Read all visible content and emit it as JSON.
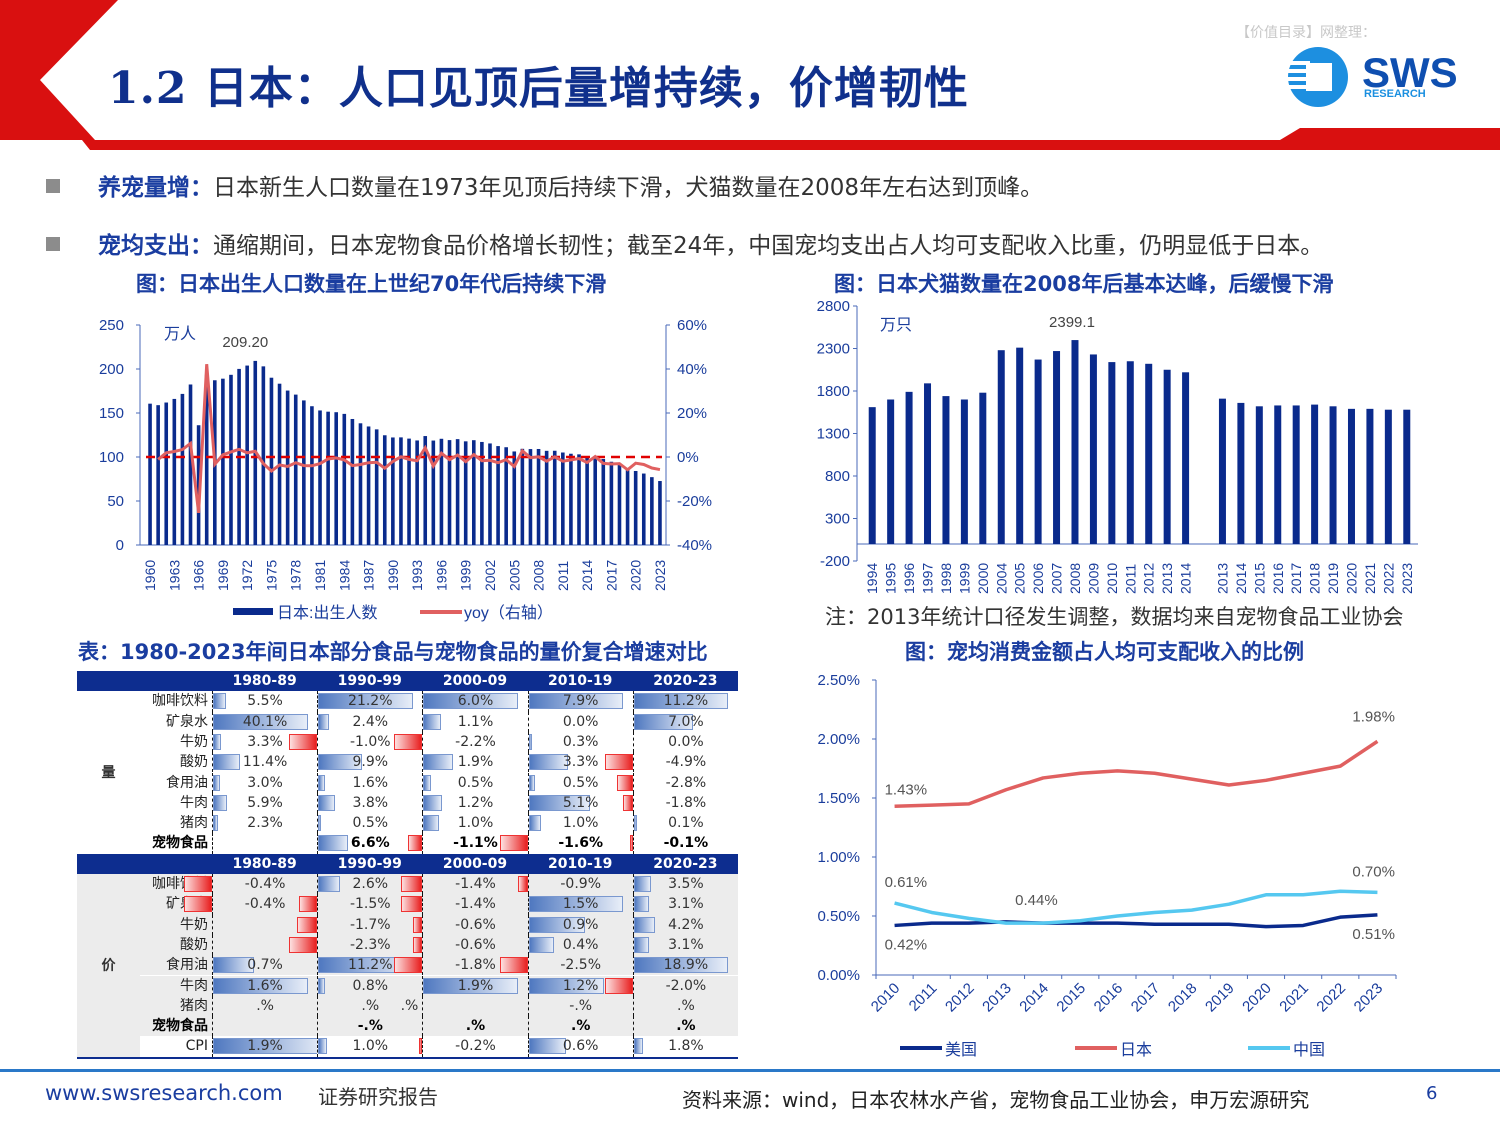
{
  "header": {
    "title": "1.2 日本：人口见顶后量增持续，价增韧性",
    "watermark": "【价值目录】网整理：",
    "logo_text": "SWS",
    "logo_sub": "RESEARCH"
  },
  "bullets": [
    {
      "label": "养宠量增：",
      "text": "日本新生人口数量在1973年见顶后持续下滑，犬猫数量在2008年左右达到顶峰。"
    },
    {
      "label": "宠均支出：",
      "text": "通缩期间，日本宠物食品价格增长韧性；截至24年，中国宠均支出占人均可支配收入比重，仍明显低于日本。"
    }
  ],
  "chart_data": [
    {
      "type": "bar",
      "title": "图：日本出生人口数量在上世纪70年代后持续下滑",
      "unit": "万人",
      "peak_label": "209.20",
      "x_start": 1960,
      "x_tick_labels": [
        "1960",
        "1963",
        "1966",
        "1969",
        "1972",
        "1975",
        "1978",
        "1981",
        "1984",
        "1987",
        "1990",
        "1993",
        "1996",
        "1999",
        "2002",
        "2005",
        "2008",
        "2011",
        "2014",
        "2017",
        "2020",
        "2023"
      ],
      "ylim": [
        0,
        250
      ],
      "yticks": [
        "0",
        "50",
        "100",
        "150",
        "200",
        "250"
      ],
      "y2lim": [
        -40,
        60
      ],
      "y2ticks": [
        "-40%",
        "-20%",
        "0%",
        "20%",
        "40%",
        "60%"
      ],
      "series": [
        {
          "name": "日本:出生人数",
          "color": "#0a2a8c",
          "values": [
            160.6,
            158.9,
            161.9,
            166.0,
            171.7,
            182.4,
            136.1,
            193.6,
            187.2,
            189.0,
            193.4,
            200.1,
            203.9,
            209.2,
            203.0,
            190.1,
            183.3,
            175.5,
            170.9,
            164.3,
            157.7,
            152.9,
            151.5,
            150.9,
            149.0,
            143.2,
            138.3,
            134.7,
            131.4,
            124.7,
            122.2,
            122.3,
            120.9,
            118.8,
            123.8,
            118.7,
            120.7,
            119.2,
            120.3,
            117.8,
            119.1,
            117.1,
            115.4,
            112.4,
            111.1,
            106.3,
            109.3,
            109.0,
            109.1,
            107.0,
            107.1,
            105.1,
            103.7,
            103.0,
            100.4,
            100.6,
            97.7,
            94.6,
            91.8,
            86.5,
            84.1,
            81.2,
            77.1,
            72.7
          ]
        },
        {
          "name": "yoy（右轴）",
          "color": "#e06060",
          "axis": "right",
          "x_start": 1961,
          "values": [
            -1.1,
            1.9,
            2.5,
            3.4,
            6.2,
            -25.4,
            42.2,
            -3.3,
            1.0,
            2.3,
            3.5,
            1.9,
            2.6,
            -3.0,
            -6.4,
            -3.6,
            -4.3,
            -2.6,
            -3.9,
            -4.0,
            -3.0,
            -0.9,
            -0.4,
            -1.3,
            -3.9,
            -3.4,
            -2.6,
            -2.4,
            -5.1,
            -2.0,
            0.1,
            -1.1,
            -1.7,
            4.2,
            -4.1,
            1.7,
            -1.2,
            0.9,
            -2.1,
            1.1,
            -1.7,
            -1.5,
            -2.6,
            -1.2,
            -4.3,
            2.8,
            -0.3,
            0.1,
            -1.9,
            0.1,
            -1.9,
            -1.3,
            -0.7,
            -2.5,
            0.2,
            -2.9,
            -3.2,
            -3.0,
            -5.8,
            -2.8,
            -3.4,
            -5.0,
            -5.7
          ]
        }
      ],
      "reference_line": {
        "value": 0,
        "axis": "right",
        "style": "dashed",
        "color": "#e00000"
      }
    },
    {
      "type": "bar",
      "title": "图：日本犬猫数量在2008年后基本达峰，后缓慢下滑",
      "unit": "万只",
      "peak_label": "2399.1",
      "categories": [
        "1994",
        "1995",
        "1996",
        "1997",
        "1998",
        "1999",
        "2000",
        "2004",
        "2005",
        "2006",
        "2007",
        "2008",
        "2009",
        "2010",
        "2011",
        "2012",
        "2013",
        "2014",
        "",
        "2013",
        "2014",
        "2015",
        "2016",
        "2017",
        "2018",
        "2019",
        "2020",
        "2021",
        "2022",
        "2023"
      ],
      "values": [
        1610,
        1700,
        1790,
        1890,
        1740,
        1700,
        1780,
        2280,
        2310,
        2170,
        2270,
        2399.1,
        2230,
        2140,
        2150,
        2120,
        2050,
        2020,
        null,
        1710,
        1660,
        1620,
        1630,
        1630,
        1640,
        1620,
        1590,
        1590,
        1580,
        1580
      ],
      "ylim": [
        -200,
        2800
      ],
      "yticks": [
        "-200",
        "300",
        "800",
        "1300",
        "1800",
        "2300",
        "2800"
      ],
      "color": "#0a2a8c",
      "note": "注：2013年统计口径发生调整，数据均来自宠物食品工业协会"
    },
    {
      "type": "line",
      "title": "图：宠均消费金额占人均可支配收入的比例",
      "categories": [
        "2010",
        "2011",
        "2012",
        "2013",
        "2014",
        "2015",
        "2016",
        "2017",
        "2018",
        "2019",
        "2020",
        "2021",
        "2022",
        "2023"
      ],
      "ylim": [
        0,
        2.5
      ],
      "yticks": [
        "0.00%",
        "0.50%",
        "1.00%",
        "1.50%",
        "2.00%",
        "2.50%"
      ],
      "legend": "bottom",
      "series": [
        {
          "name": "美国",
          "color": "#0a2a8c",
          "values": [
            0.42,
            0.44,
            0.44,
            0.45,
            0.44,
            0.44,
            0.44,
            0.43,
            0.43,
            0.43,
            0.41,
            0.42,
            0.49,
            0.51
          ]
        },
        {
          "name": "日本",
          "color": "#e06060",
          "values": [
            1.43,
            1.44,
            1.45,
            1.57,
            1.67,
            1.71,
            1.73,
            1.71,
            1.66,
            1.61,
            1.65,
            1.71,
            1.77,
            1.98
          ]
        },
        {
          "name": "中国",
          "color": "#55c8f0",
          "values": [
            0.61,
            0.53,
            0.48,
            0.44,
            0.44,
            0.46,
            0.5,
            0.53,
            0.55,
            0.6,
            0.68,
            0.68,
            0.71,
            0.7
          ]
        }
      ],
      "data_labels": [
        {
          "series": "日本",
          "x": "2010",
          "text": "1.43%"
        },
        {
          "series": "日本",
          "x": "2023",
          "text": "1.98%"
        },
        {
          "series": "中国",
          "x": "2010",
          "text": "0.61%"
        },
        {
          "series": "中国",
          "x": "2014",
          "text": "0.44%"
        },
        {
          "series": "中国",
          "x": "2023",
          "text": "0.70%"
        },
        {
          "series": "美国",
          "x": "2010",
          "text": "0.42%"
        },
        {
          "series": "美国",
          "x": "2023",
          "text": "0.51%"
        }
      ]
    }
  ],
  "table": {
    "title": "表：1980-2023年间日本部分食品与宠物食品的量价复合增速对比",
    "columns": [
      "1980-89",
      "1990-99",
      "2000-09",
      "2010-19",
      "2020-23"
    ],
    "sections": [
      {
        "label": "量",
        "rows": [
          {
            "name": "咖啡饮料",
            "values": [
              "5.5%",
              "21.2%",
              "6.0%",
              "7.9%",
              "11.2%"
            ]
          },
          {
            "name": "矿泉水",
            "values": [
              "40.1%",
              "2.4%",
              "1.1%",
              "0.0%",
              "7.0%"
            ]
          },
          {
            "name": "牛奶",
            "values": [
              "3.3%",
              "-1.0%",
              "-2.2%",
              "0.3%",
              "0.0%"
            ]
          },
          {
            "name": "酸奶",
            "values": [
              "11.4%",
              "9.9%",
              "1.9%",
              "3.3%",
              "-4.9%"
            ]
          },
          {
            "name": "食用油",
            "values": [
              "3.0%",
              "1.6%",
              "0.5%",
              "0.5%",
              "-2.8%"
            ]
          },
          {
            "name": "牛肉",
            "values": [
              "5.9%",
              "3.8%",
              "1.2%",
              "5.1%",
              "-1.8%"
            ]
          },
          {
            "name": "猪肉",
            "values": [
              "2.3%",
              "0.5%",
              "1.0%",
              "1.0%",
              "0.1%"
            ]
          },
          {
            "name": "宠物食品",
            "bold": true,
            "values": [
              "",
              "6.6%",
              "-1.1%",
              "-1.6%",
              "-0.1%"
            ]
          }
        ]
      },
      {
        "label": "价",
        "rows": [
          {
            "name": "咖啡饮料",
            "values": [
              "-0.4%",
              "2.6%",
              "-1.4%",
              "-0.9%",
              "3.5%"
            ]
          },
          {
            "name": "矿泉水",
            "values": [
              "-0.4%",
              "-1.5%",
              "-1.4%",
              "1.5%",
              "3.1%"
            ]
          },
          {
            "name": "牛奶",
            "values": [
              "",
              "-1.7%",
              "-0.6%",
              "0.9%",
              "4.2%"
            ]
          },
          {
            "name": "酸奶",
            "values": [
              "",
              "-2.3%",
              "-0.6%",
              "0.4%",
              "3.1%"
            ]
          },
          {
            "name": "食用油",
            "values": [
              "0.7%",
              "11.2%",
              "-1.8%",
              "-2.5%",
              "18.9%"
            ]
          },
          {
            "name": "牛肉",
            "values": [
              "1.6%",
              "0.8%",
              "1.9%",
              "1.2%",
              "-2.0%"
            ]
          },
          {
            "name": "猪肉",
            "values": [
              ".%",
              ".%",
              "",
              "-.%",
              ".%"
            ],
            "extra": {
              "col": 1,
              "text": ".%"
            }
          },
          {
            "name": "宠物食品",
            "bold": true,
            "values": [
              "",
              "-.%",
              ".%",
              ".%",
              ".%"
            ]
          },
          {
            "name": "CPI",
            "white": true,
            "values": [
              "1.9%",
              "1.0%",
              "-0.2%",
              "0.6%",
              "1.8%"
            ]
          }
        ]
      }
    ]
  },
  "footer": {
    "url": "www.swsresearch.com",
    "report_type": "证券研究报告",
    "source": "资料来源：wind，日本农林水产省，宠物食品工业协会，申万宏源研究",
    "page": "6"
  }
}
